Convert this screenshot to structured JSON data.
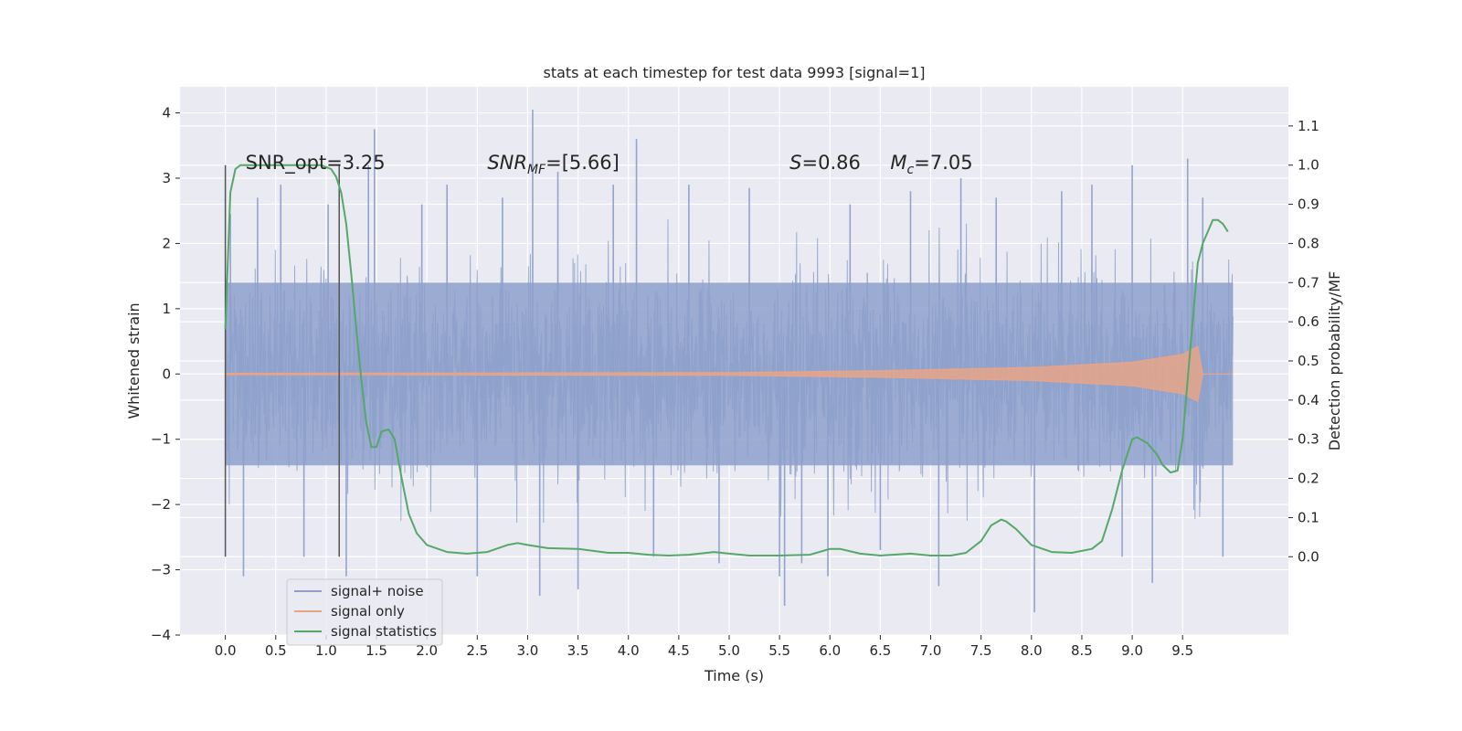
{
  "chart_data": {
    "type": "line",
    "title": "stats at each timestep for test data 9993 [signal=1]",
    "xlabel": "Time (s)",
    "ylabel": "Whitened strain",
    "y2label": "Detection probability/MF",
    "xlim": [
      -0.45,
      10.55
    ],
    "ylim": [
      -4.0,
      4.4
    ],
    "y2lim": [
      -0.2,
      1.2
    ],
    "x_ticks": [
      0.0,
      0.5,
      1.0,
      1.5,
      2.0,
      2.5,
      3.0,
      3.5,
      4.0,
      4.5,
      5.0,
      5.5,
      6.0,
      6.5,
      7.0,
      7.5,
      8.0,
      8.5,
      9.0,
      9.5
    ],
    "x_tick_labels": [
      "0.0",
      "0.5",
      "1.0",
      "1.5",
      "2.0",
      "2.5",
      "3.0",
      "3.5",
      "4.0",
      "4.5",
      "5.0",
      "5.5",
      "6.0",
      "6.5",
      "7.0",
      "7.5",
      "8.0",
      "8.5",
      "9.0",
      "9.5"
    ],
    "y_ticks": [
      -4,
      -3,
      -2,
      -1,
      0,
      1,
      2,
      3,
      4
    ],
    "y_tick_labels": [
      "−4",
      "−3",
      "−2",
      "−1",
      "0",
      "1",
      "2",
      "3",
      "4"
    ],
    "y2_ticks": [
      0.0,
      0.1,
      0.2,
      0.3,
      0.4,
      0.5,
      0.6,
      0.7,
      0.8,
      0.9,
      1.0,
      1.1
    ],
    "y2_tick_labels": [
      "0.0",
      "0.1",
      "0.2",
      "0.3",
      "0.4",
      "0.5",
      "0.6",
      "0.7",
      "0.8",
      "0.9",
      "1.0",
      "1.1"
    ],
    "grid": true,
    "legend_placement": "lower-left",
    "colors": {
      "noise": "#8da0cb",
      "signal": "#e8a488",
      "stats": "#55a868",
      "vline": "#555555",
      "plot_bg": "#eaeaf2",
      "grid": "#ffffff"
    },
    "series": [
      {
        "name": "signal+ noise",
        "x_range": [
          0.0,
          10.0
        ],
        "envelope": {
          "dense_band": [
            -1.4,
            1.4
          ],
          "typical_peaks": [
            -2.3,
            2.4
          ]
        },
        "spikes": [
          {
            "x": 0.05,
            "y": 2.45
          },
          {
            "x": 0.18,
            "y": -3.1
          },
          {
            "x": 0.32,
            "y": 2.7
          },
          {
            "x": 0.55,
            "y": 2.9
          },
          {
            "x": 0.78,
            "y": -2.8
          },
          {
            "x": 1.02,
            "y": 2.6
          },
          {
            "x": 1.2,
            "y": -3.1
          },
          {
            "x": 1.48,
            "y": 3.75
          },
          {
            "x": 1.42,
            "y": 3.2
          },
          {
            "x": 1.95,
            "y": 2.6
          },
          {
            "x": 2.2,
            "y": 2.9
          },
          {
            "x": 2.5,
            "y": -3.1
          },
          {
            "x": 2.75,
            "y": 2.7
          },
          {
            "x": 3.05,
            "y": 4.05
          },
          {
            "x": 3.12,
            "y": -3.4
          },
          {
            "x": 3.3,
            "y": 3.1
          },
          {
            "x": 3.5,
            "y": -3.3
          },
          {
            "x": 3.85,
            "y": 2.9
          },
          {
            "x": 4.08,
            "y": 3.6
          },
          {
            "x": 4.25,
            "y": -2.8
          },
          {
            "x": 4.6,
            "y": 2.9
          },
          {
            "x": 4.9,
            "y": -2.9
          },
          {
            "x": 5.2,
            "y": 2.85
          },
          {
            "x": 5.5,
            "y": -3.1
          },
          {
            "x": 5.55,
            "y": -3.55
          },
          {
            "x": 5.72,
            "y": -2.9
          },
          {
            "x": 5.98,
            "y": -3.1
          },
          {
            "x": 6.2,
            "y": 2.6
          },
          {
            "x": 6.5,
            "y": -2.7
          },
          {
            "x": 6.8,
            "y": 2.8
          },
          {
            "x": 7.08,
            "y": -3.25
          },
          {
            "x": 7.3,
            "y": 3.0
          },
          {
            "x": 7.65,
            "y": 2.7
          },
          {
            "x": 8.03,
            "y": -3.65
          },
          {
            "x": 8.3,
            "y": 2.8
          },
          {
            "x": 8.6,
            "y": 2.9
          },
          {
            "x": 8.9,
            "y": -2.8
          },
          {
            "x": 9.0,
            "y": 3.2
          },
          {
            "x": 9.2,
            "y": -3.2
          },
          {
            "x": 9.55,
            "y": 3.3
          },
          {
            "x": 9.7,
            "y": 2.7
          },
          {
            "x": 9.9,
            "y": -2.8
          }
        ]
      },
      {
        "name": "signal only",
        "x_range": [
          0.0,
          10.0
        ],
        "amplitude_envelope": [
          [
            0.0,
            0.01
          ],
          [
            5.0,
            0.02
          ],
          [
            6.5,
            0.05
          ],
          [
            8.0,
            0.1
          ],
          [
            9.0,
            0.18
          ],
          [
            9.5,
            0.3
          ],
          [
            9.65,
            0.42
          ],
          [
            9.7,
            0.0
          ],
          [
            10.0,
            0.0
          ]
        ]
      },
      {
        "name": "signal statistics",
        "axis": "y2",
        "x": [
          0.0,
          0.05,
          0.1,
          0.15,
          0.25,
          0.4,
          0.6,
          0.8,
          0.95,
          1.05,
          1.1,
          1.15,
          1.2,
          1.25,
          1.3,
          1.35,
          1.4,
          1.45,
          1.5,
          1.55,
          1.62,
          1.68,
          1.75,
          1.82,
          1.9,
          2.0,
          2.2,
          2.4,
          2.6,
          2.8,
          2.9,
          3.0,
          3.2,
          3.5,
          3.8,
          4.0,
          4.2,
          4.4,
          4.6,
          4.85,
          5.0,
          5.2,
          5.5,
          5.8,
          6.0,
          6.1,
          6.3,
          6.5,
          6.8,
          7.0,
          7.2,
          7.35,
          7.5,
          7.6,
          7.7,
          7.75,
          7.85,
          8.0,
          8.2,
          8.4,
          8.6,
          8.7,
          8.8,
          8.9,
          9.0,
          9.05,
          9.15,
          9.25,
          9.3,
          9.38,
          9.45,
          9.5,
          9.55,
          9.6,
          9.65,
          9.7,
          9.75,
          9.8,
          9.85,
          9.9,
          9.95
        ],
        "y": [
          0.58,
          0.93,
          0.99,
          1.0,
          1.0,
          1.0,
          1.0,
          1.0,
          1.0,
          0.99,
          0.97,
          0.93,
          0.85,
          0.72,
          0.58,
          0.45,
          0.34,
          0.28,
          0.28,
          0.32,
          0.325,
          0.3,
          0.2,
          0.11,
          0.06,
          0.03,
          0.012,
          0.008,
          0.012,
          0.03,
          0.035,
          0.03,
          0.022,
          0.02,
          0.01,
          0.01,
          0.005,
          0.003,
          0.005,
          0.012,
          0.008,
          0.003,
          0.003,
          0.005,
          0.02,
          0.02,
          0.008,
          0.003,
          0.008,
          0.003,
          0.003,
          0.01,
          0.04,
          0.08,
          0.095,
          0.09,
          0.07,
          0.03,
          0.012,
          0.01,
          0.02,
          0.04,
          0.12,
          0.22,
          0.3,
          0.305,
          0.29,
          0.26,
          0.235,
          0.215,
          0.22,
          0.3,
          0.45,
          0.6,
          0.75,
          0.8,
          0.83,
          0.86,
          0.86,
          0.85,
          0.83
        ]
      }
    ],
    "vlines": [
      {
        "x": 0.0,
        "ymin": -2.8,
        "ymax": 3.2
      },
      {
        "x": 1.13,
        "ymin": -2.8,
        "ymax": 3.2
      }
    ],
    "annotations": [
      {
        "id": "snr-opt",
        "plain": "SNR_opt=3.25",
        "x": 0.2,
        "y": 3.25
      },
      {
        "id": "snr-mf",
        "math_main": "SNR",
        "math_sub": "MF",
        "rest": "=[5.66]",
        "x": 2.6,
        "y": 3.25
      },
      {
        "id": "s",
        "math_main": "S",
        "math_sub": "",
        "rest": "=0.86",
        "x": 5.6,
        "y": 3.25
      },
      {
        "id": "mc",
        "math_main": "M",
        "math_sub": "c",
        "rest": "=7.05",
        "x": 6.6,
        "y": 3.25
      }
    ]
  }
}
